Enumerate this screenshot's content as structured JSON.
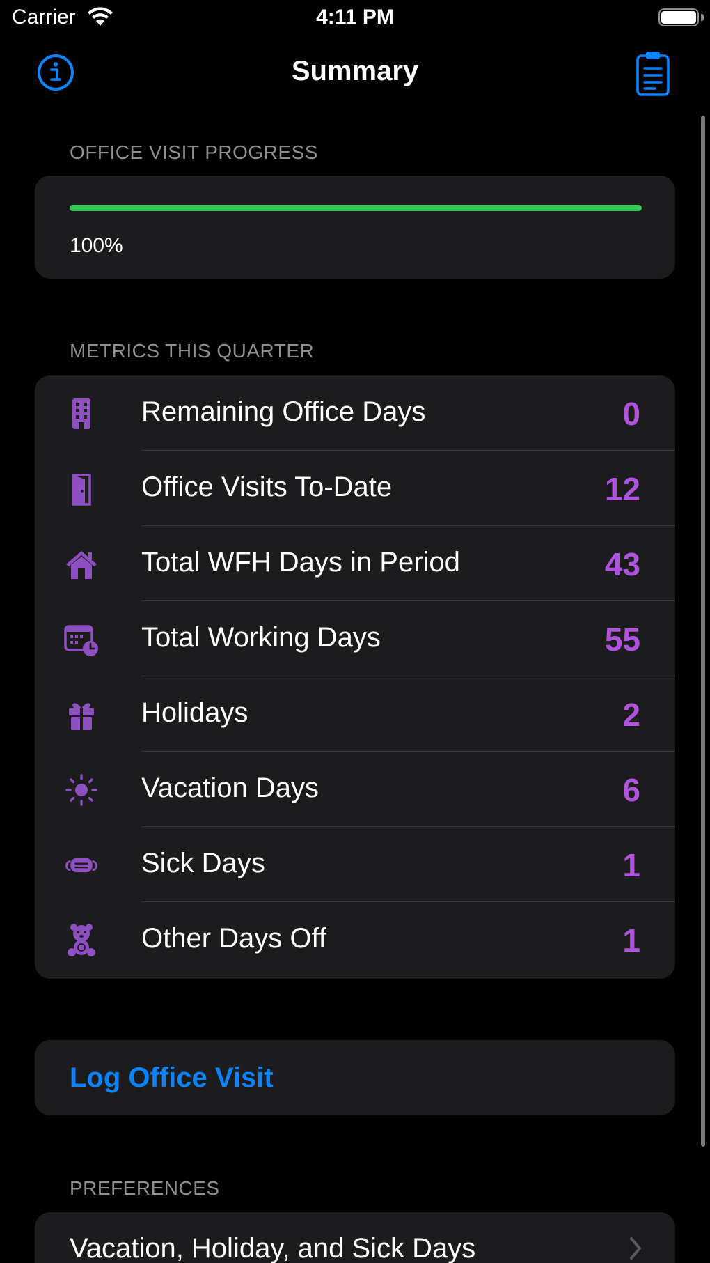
{
  "status_bar": {
    "carrier": "Carrier",
    "time": "4:11 PM"
  },
  "nav": {
    "title": "Summary",
    "left_icon": "info-icon",
    "right_icon": "clipboard-icon"
  },
  "progress_section": {
    "header": "OFFICE VISIT PROGRESS",
    "percent_label": "100%",
    "progress_fraction": 1.0
  },
  "metrics_section": {
    "header": "METRICS THIS QUARTER",
    "items": [
      {
        "icon": "building-icon",
        "label": "Remaining Office Days",
        "value": "0"
      },
      {
        "icon": "door-icon",
        "label": "Office Visits To-Date",
        "value": "12"
      },
      {
        "icon": "house-icon",
        "label": "Total WFH Days in Period",
        "value": "43"
      },
      {
        "icon": "calendar-clock-icon",
        "label": "Total Working Days",
        "value": "55"
      },
      {
        "icon": "gift-icon",
        "label": "Holidays",
        "value": "2"
      },
      {
        "icon": "sun-icon",
        "label": "Vacation Days",
        "value": "6"
      },
      {
        "icon": "medical-mask-icon",
        "label": "Sick Days",
        "value": "1"
      },
      {
        "icon": "teddy-bear-icon",
        "label": "Other Days Off",
        "value": "1"
      }
    ]
  },
  "log_visit": {
    "label": "Log Office Visit"
  },
  "preferences_section": {
    "header": "PREFERENCES",
    "items": [
      {
        "label": "Vacation, Holiday, and Sick Days"
      }
    ]
  },
  "colors": {
    "accent_blue": "#0a84ff",
    "metric_purple": "#af52de",
    "icon_purple": "#8e4fc0",
    "progress_green": "#34c759",
    "card_bg": "#1c1c1e"
  }
}
